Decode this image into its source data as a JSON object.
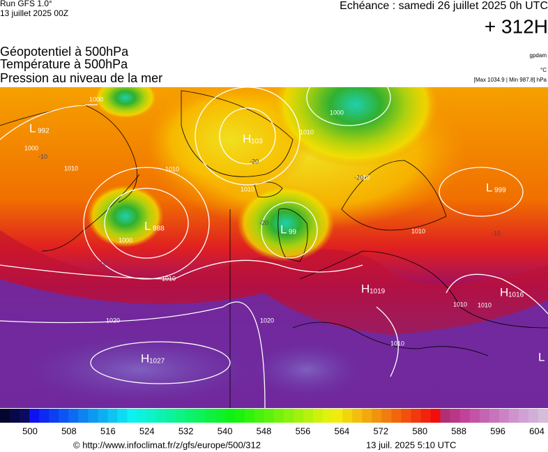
{
  "header": {
    "run": "Run GFS 1.0°",
    "date": "13 juillet 2025 00Z",
    "echeance": "Echéance : samedi 26 juillet 2025 0h UTC",
    "offset": "+ 312H"
  },
  "layers": [
    "Géopotentiel à 500hPa",
    "Température à 500hPa",
    "Pression au niveau de la mer"
  ],
  "info": {
    "unit_label": "gpdam",
    "temp_unit": "°C",
    "range": "[Max 1034.9 | Min 987.8] hPa"
  },
  "systems": [
    {
      "letter": "L",
      "value": "992"
    },
    {
      "letter": "H",
      "value": "103"
    },
    {
      "letter": "L",
      "value": "988"
    },
    {
      "letter": "L",
      "value": "99"
    },
    {
      "letter": "L",
      "value": "999"
    },
    {
      "letter": "H",
      "value": "1019"
    },
    {
      "letter": "H",
      "value": "1016"
    },
    {
      "letter": "H",
      "value": "1027"
    },
    {
      "letter": "L",
      "value": ""
    }
  ],
  "isobar_labels": [
    "1000",
    "1000",
    "1010",
    "1010",
    "1000",
    "1010",
    "1010",
    "1010",
    "1020",
    "1020",
    "1010",
    "1010",
    "1010",
    "1000",
    "1010",
    "1010"
  ],
  "temperature_labels": [
    "-10",
    "-10",
    "-20",
    "-20",
    "-20",
    "-10"
  ],
  "scale": {
    "ticks": [
      "500",
      "508",
      "516",
      "524",
      "532",
      "540",
      "548",
      "556",
      "564",
      "572",
      "580",
      "588",
      "596",
      "604"
    ]
  },
  "footer": {
    "url": "© http://www.infoclimat.fr/z/gfs/europe/500/312",
    "time": "13 juil. 2025  5:10 UTC"
  }
}
